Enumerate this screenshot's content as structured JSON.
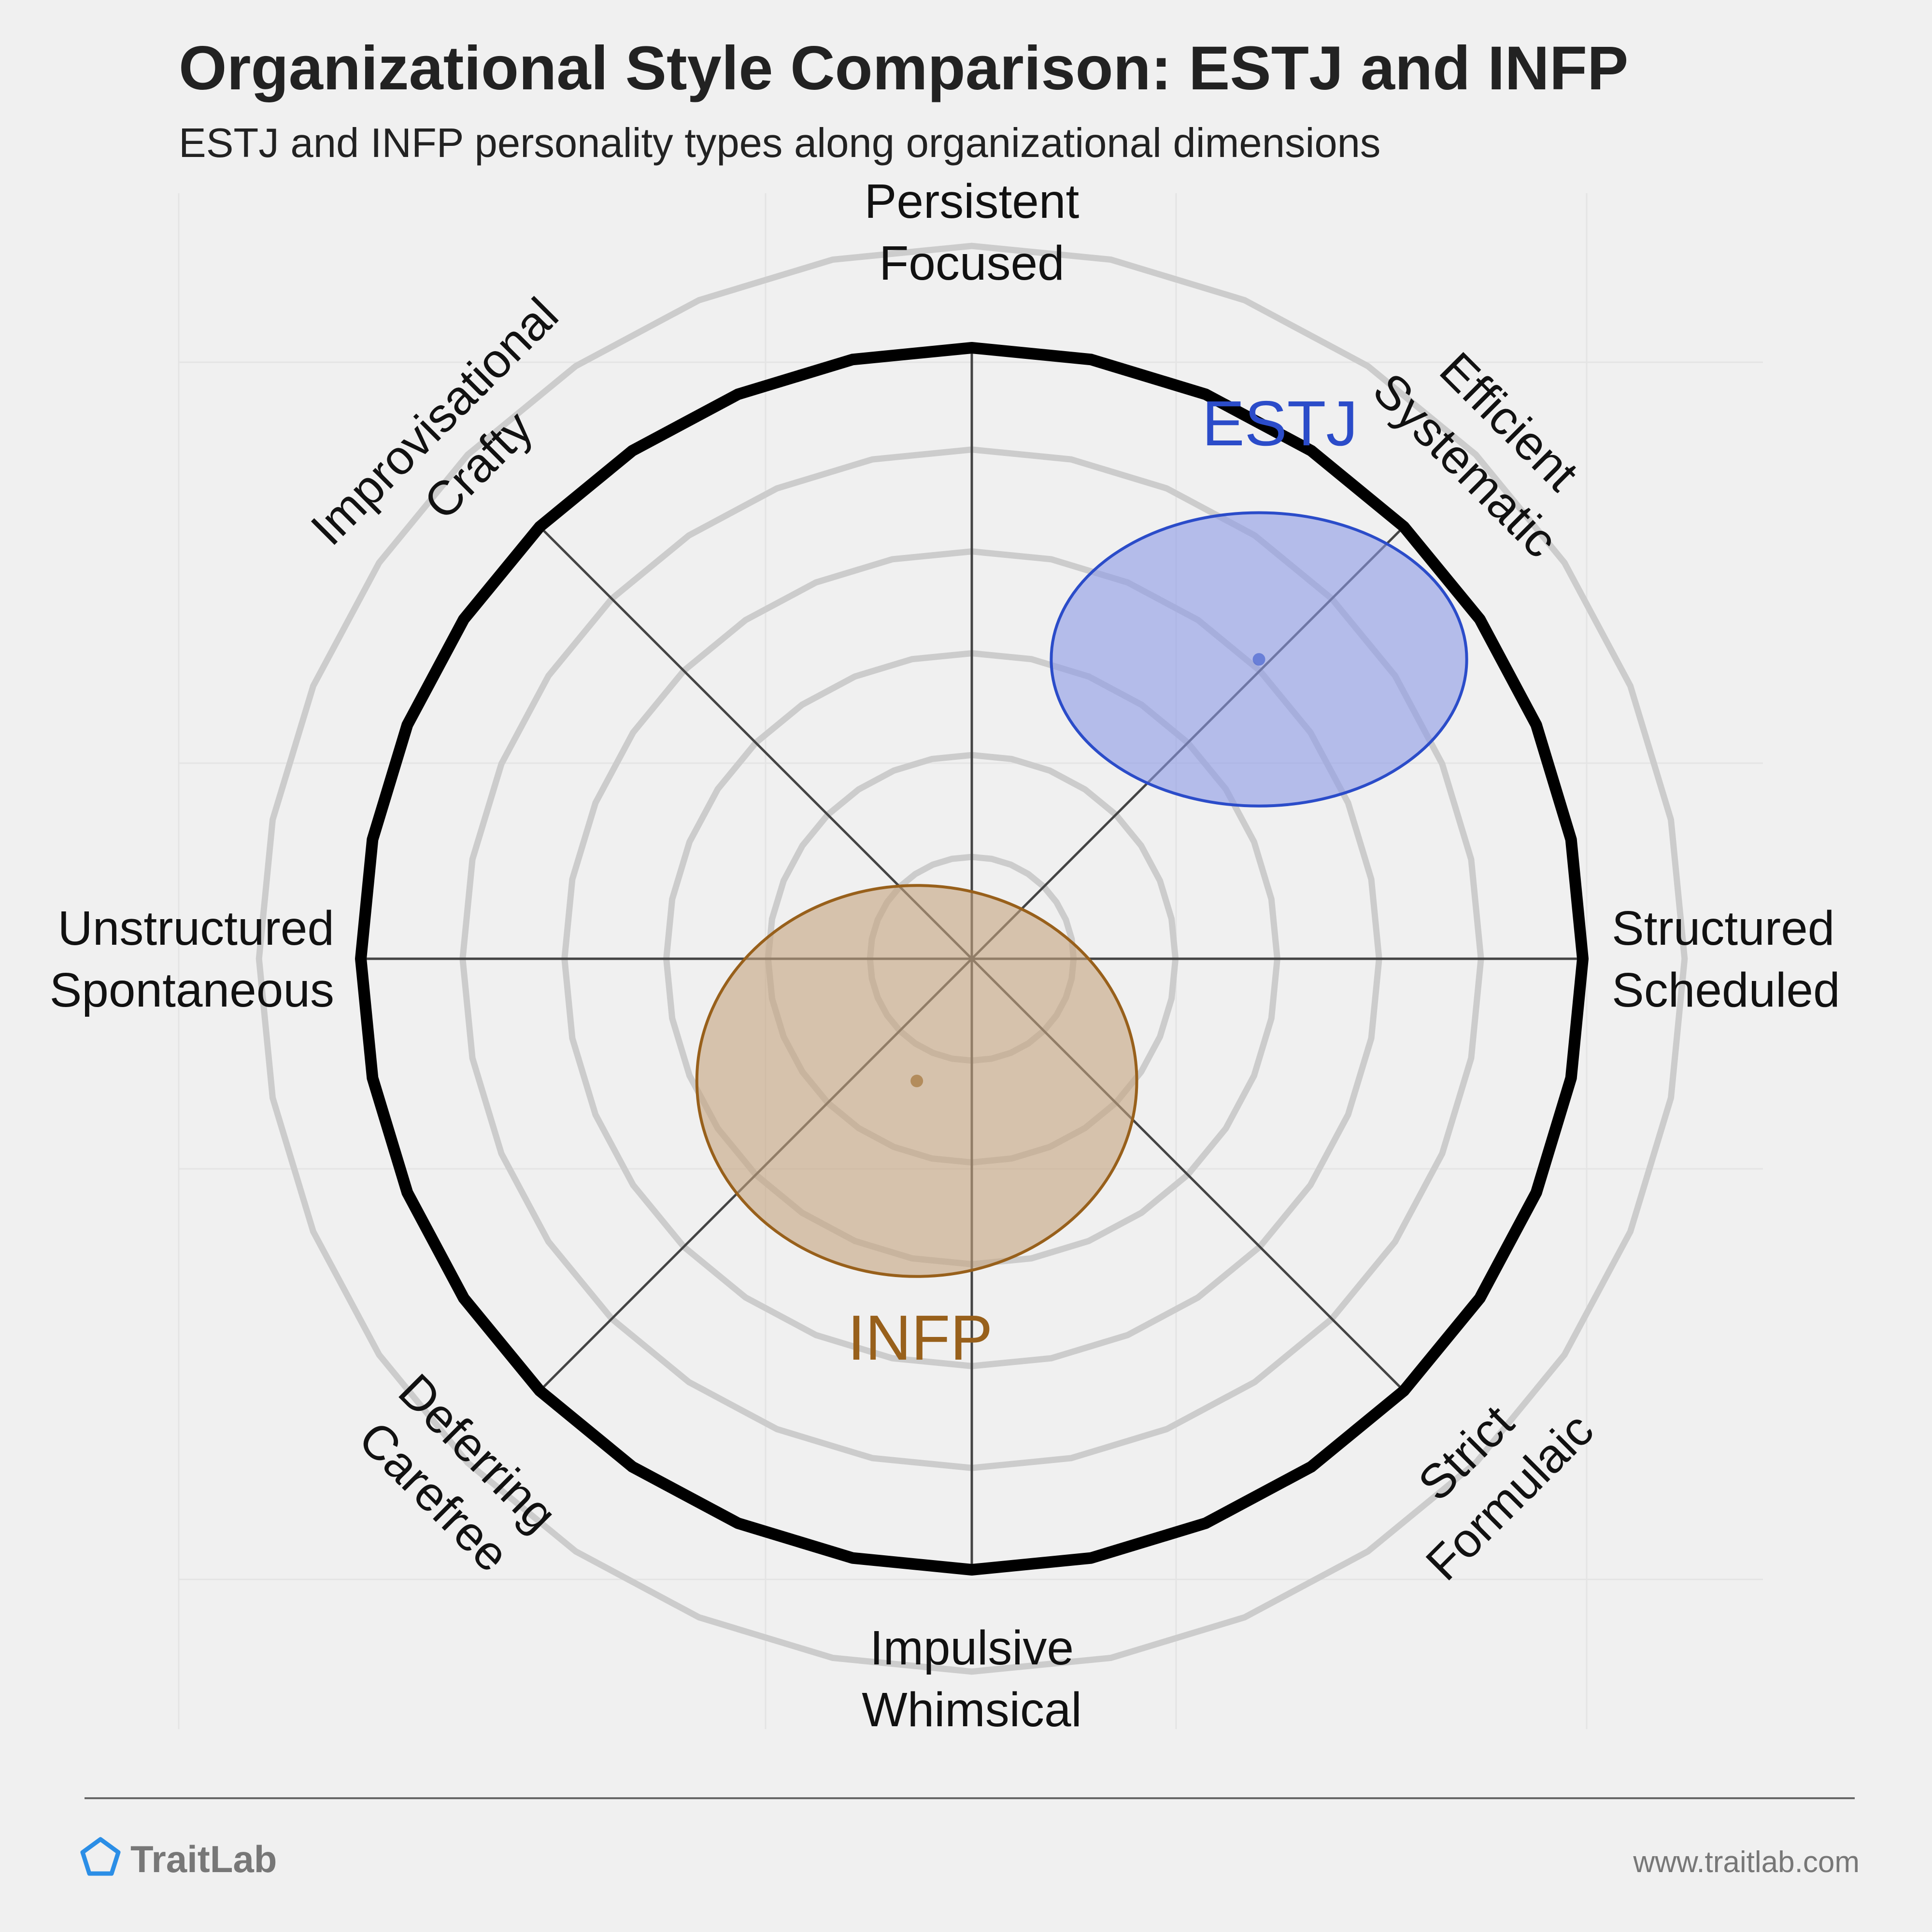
{
  "title": "Organizational Style Comparison: ESTJ and INFP",
  "subtitle": "ESTJ and INFP personality types along organizational dimensions",
  "chart_data": {
    "type": "scatter",
    "grid": true,
    "axes": [
      {
        "lines": [
          "Structured",
          "Scheduled"
        ]
      },
      {
        "lines": [
          "Efficient",
          "Systematic"
        ]
      },
      {
        "lines": [
          "Persistent",
          "Focused"
        ]
      },
      {
        "lines": [
          "Improvisational",
          "Crafty"
        ]
      },
      {
        "lines": [
          "Unstructured",
          "Spontaneous"
        ]
      },
      {
        "lines": [
          "Deferring",
          "Carefree"
        ]
      },
      {
        "lines": [
          "Impulsive",
          "Whimsical"
        ]
      },
      {
        "lines": [
          "Strict",
          "Formulaic"
        ]
      }
    ],
    "x_range": [
      -1,
      1
    ],
    "y_range": [
      -1,
      1
    ],
    "series": [
      {
        "name": "ESTJ",
        "x": 0.47,
        "y": 0.49,
        "spread_x": 0.34,
        "spread_y": 0.24,
        "color": "#2b4cc9",
        "fill": "#8c9ae6"
      },
      {
        "name": "INFP",
        "x": -0.09,
        "y": -0.2,
        "spread_x": 0.36,
        "spread_y": 0.32,
        "color": "#98601b",
        "fill": "#c4a47f"
      }
    ]
  },
  "footer": {
    "brand": "TraitLab",
    "url": "www.traitlab.com"
  },
  "colors": {
    "background": "#f0f0f0",
    "ring": "#cccccc",
    "outline": "#000000",
    "spoke": "#444444"
  }
}
